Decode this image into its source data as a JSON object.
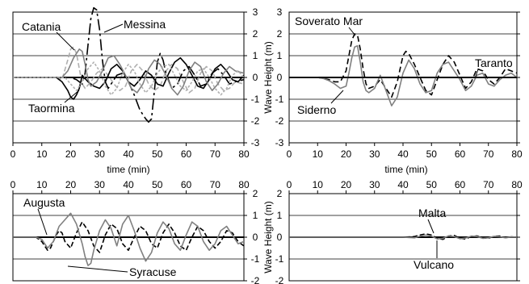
{
  "chart_data": [
    {
      "type": "line",
      "panel": "top-left",
      "xlim": [
        0,
        80
      ],
      "ylim": [
        -3,
        3
      ],
      "x_ticks": [
        "0",
        "10",
        "20",
        "30",
        "40",
        "50",
        "60",
        "70",
        "80"
      ],
      "y_ticks": [
        "3",
        "2",
        "1",
        "0",
        "-1",
        "-2",
        "-3"
      ],
      "xlabel": "time (min)",
      "ylabel": "",
      "grid": true,
      "series": [
        {
          "name": "Catania",
          "color": "#b0b0b0",
          "dash": "6,3",
          "x": [
            0,
            15,
            17,
            19,
            20,
            21,
            22,
            23,
            24,
            25,
            27,
            29,
            31,
            33,
            35,
            37,
            39,
            41,
            43,
            45,
            47,
            49,
            51,
            53,
            55,
            57,
            59,
            61,
            63,
            65,
            67,
            69,
            71,
            73,
            75,
            77,
            80
          ],
          "y": [
            0,
            0,
            -0.1,
            0.8,
            1.3,
            1.4,
            1.1,
            0.4,
            -0.3,
            -0.5,
            -0.2,
            0.2,
            0.4,
            0.1,
            -0.3,
            -0.6,
            -0.4,
            0.3,
            0.6,
            0.3,
            -0.3,
            -0.6,
            -0.4,
            0.3,
            0.6,
            0.4,
            -0.2,
            -0.7,
            -0.5,
            0.2,
            0.5,
            0.3,
            -0.3,
            -0.6,
            -0.5,
            -0.2,
            -0.3
          ]
        },
        {
          "name": "Messina",
          "color": "#000000",
          "dash": "14,4,3,4",
          "x": [
            0,
            20,
            22,
            24,
            25,
            26,
            27,
            28,
            29,
            30,
            31,
            32,
            33,
            34,
            36,
            38,
            40,
            42,
            44,
            46,
            47,
            48,
            49,
            50,
            51,
            52,
            53,
            55,
            57,
            59,
            61,
            63,
            65,
            67,
            69,
            71,
            73,
            75,
            77,
            80
          ],
          "y": [
            0,
            0,
            -0.1,
            -0.3,
            0.2,
            1.5,
            2.7,
            3.2,
            3.1,
            2.2,
            0.8,
            -0.2,
            -0.5,
            -0.3,
            0.1,
            0.2,
            -0.2,
            -0.8,
            -1.5,
            -1.9,
            -2.05,
            -1.9,
            -0.6,
            0.7,
            1.1,
            0.8,
            0.2,
            -0.5,
            -0.3,
            0.3,
            0.5,
            0.1,
            -0.4,
            -0.3,
            0.2,
            0.4,
            0.1,
            -0.3,
            -0.2,
            -0.1
          ]
        },
        {
          "name": "Taormina",
          "color": "#000000",
          "dash": "none",
          "x": [
            0,
            15,
            17,
            19,
            20,
            21,
            22,
            23,
            24,
            26,
            28,
            30,
            32,
            34,
            36,
            38,
            40,
            42,
            44,
            46,
            48,
            50,
            52,
            54,
            56,
            58,
            60,
            62,
            64,
            66,
            68,
            70,
            72,
            74,
            76,
            78,
            80
          ],
          "y": [
            0,
            0,
            -0.2,
            -0.6,
            -0.9,
            -1.0,
            -0.8,
            -0.5,
            0.1,
            -0.2,
            -0.4,
            -0.5,
            -0.2,
            0.4,
            0.6,
            0.3,
            -0.2,
            -0.4,
            -0.1,
            0.3,
            0.1,
            -0.3,
            -0.4,
            0.2,
            0.7,
            0.9,
            0.6,
            0.1,
            -0.4,
            -0.5,
            -0.1,
            0.4,
            0.6,
            0.3,
            -0.1,
            -0.2,
            0.1
          ]
        },
        {
          "name": "",
          "color": "#808080",
          "dash": "none",
          "x": [
            0,
            17,
            19,
            21,
            23,
            24,
            25,
            26,
            27,
            29,
            31,
            33,
            35,
            37,
            39,
            41,
            43,
            45,
            47,
            49,
            51,
            53,
            55,
            57,
            59,
            61,
            63,
            65,
            67,
            69,
            71,
            73,
            75,
            77,
            80
          ],
          "y": [
            0,
            0,
            0.3,
            0.9,
            1.3,
            1.2,
            0.6,
            -0.1,
            -0.4,
            -0.2,
            0.3,
            0.9,
            1.0,
            0.6,
            0.1,
            -0.5,
            -0.7,
            -0.3,
            0.4,
            0.8,
            0.6,
            0.1,
            -0.5,
            -0.8,
            -0.4,
            0.3,
            0.7,
            0.5,
            -0.2,
            -0.6,
            -0.3,
            0.2,
            0.5,
            0.3,
            0.2
          ]
        },
        {
          "name": "",
          "color": "#b0b0b0",
          "dash": "3,2",
          "x": [
            0,
            18,
            20,
            22,
            24,
            26,
            28,
            30,
            32,
            34,
            36,
            38,
            40,
            42,
            44,
            46,
            48,
            50,
            52,
            54,
            56,
            58,
            60,
            62,
            64,
            66,
            68,
            70,
            72,
            74,
            76,
            78,
            80
          ],
          "y": [
            0,
            0,
            -0.3,
            -0.6,
            -0.2,
            0.4,
            0.7,
            0.3,
            -0.4,
            -0.8,
            -0.5,
            0.2,
            0.6,
            0.3,
            -0.3,
            -0.7,
            -0.4,
            0.2,
            0.5,
            0.6,
            0.1,
            -0.4,
            -0.6,
            -0.2,
            0.3,
            0.4,
            0.0,
            -0.5,
            -0.8,
            -0.5,
            0.1,
            0.3,
            0.0
          ]
        }
      ],
      "annotations": [
        "Catania",
        "Messina",
        "Taormina"
      ]
    },
    {
      "type": "line",
      "panel": "top-right",
      "xlim": [
        0,
        80
      ],
      "ylim": [
        -3,
        3
      ],
      "x_ticks": [
        "0",
        "10",
        "20",
        "30",
        "40",
        "50",
        "60",
        "70",
        "80"
      ],
      "y_ticks": [
        "3",
        "2",
        "1",
        "0",
        "-1",
        "-2",
        "-3"
      ],
      "xlabel": "time (min)",
      "ylabel": "Wave Height (m)",
      "grid": true,
      "series": [
        {
          "name": "Soverato Mar",
          "color": "#000000",
          "dash": "7,4",
          "x": [
            0,
            10,
            12,
            14,
            16,
            18,
            20,
            21,
            22,
            23,
            24,
            25,
            26,
            27,
            28,
            30,
            32,
            34,
            36,
            38,
            40,
            41,
            42,
            44,
            46,
            48,
            50,
            52,
            54,
            56,
            58,
            60,
            62,
            64,
            66,
            68,
            70,
            72,
            74,
            76,
            78,
            80
          ],
          "y": [
            0,
            0,
            -0.05,
            -0.1,
            -0.2,
            -0.2,
            0.3,
            1.0,
            1.7,
            2.0,
            1.95,
            1.3,
            0.4,
            -0.3,
            -0.5,
            -0.4,
            -0.1,
            -0.5,
            -0.9,
            -0.2,
            1.0,
            1.2,
            1.1,
            0.6,
            0.0,
            -0.6,
            -0.8,
            -0.1,
            0.6,
            1.0,
            0.7,
            0.1,
            -0.5,
            -0.2,
            0.4,
            0.3,
            -0.1,
            -0.3,
            0.0,
            0.4,
            0.3,
            0.2
          ]
        },
        {
          "name": "Siderno",
          "color": "#808080",
          "dash": "none",
          "x": [
            0,
            10,
            12,
            14,
            16,
            18,
            20,
            21,
            22,
            23,
            24,
            25,
            26,
            27,
            28,
            30,
            32,
            34,
            36,
            38,
            40,
            42,
            44,
            46,
            48,
            50,
            52,
            54,
            56,
            58,
            60,
            62,
            64,
            66,
            68,
            70,
            72,
            74,
            76,
            78,
            80
          ],
          "y": [
            0,
            0,
            -0.05,
            -0.15,
            -0.3,
            -0.5,
            -0.4,
            0.2,
            0.9,
            1.4,
            1.45,
            0.7,
            -0.2,
            -0.6,
            -0.7,
            -0.5,
            0.1,
            -0.6,
            -1.3,
            -0.9,
            0.2,
            0.8,
            0.4,
            -0.3,
            -0.7,
            -0.6,
            0.2,
            0.6,
            0.7,
            0.3,
            -0.1,
            -0.6,
            -0.4,
            0.1,
            0.2,
            -0.3,
            -0.4,
            -0.1,
            0.1,
            0.2,
            0.0
          ]
        },
        {
          "name": "Taranto",
          "color": "#000000",
          "dash": "none",
          "x": [
            0,
            80
          ],
          "y": [
            0,
            0
          ]
        }
      ],
      "annotations": [
        "Soverato Mar",
        "Taranto",
        "Siderno"
      ]
    },
    {
      "type": "line",
      "panel": "bottom-left",
      "xlim": [
        0,
        80
      ],
      "ylim": [
        -2,
        2
      ],
      "x_ticks": [
        "0",
        "10",
        "20",
        "30",
        "40",
        "50",
        "60",
        "70",
        "80"
      ],
      "y_ticks": [
        "2",
        "1",
        "0",
        "-1",
        "-2"
      ],
      "xlabel": "",
      "ylabel": "",
      "grid": true,
      "series": [
        {
          "name": "Augusta",
          "color": "#000000",
          "dash": "6,3",
          "x": [
            0,
            8,
            10,
            11,
            12,
            13,
            14,
            15,
            16,
            17,
            18,
            20,
            22,
            24,
            26,
            28,
            30,
            32,
            34,
            36,
            38,
            40,
            42,
            44,
            46,
            48,
            50,
            52,
            54,
            56,
            58,
            60,
            62,
            64,
            66,
            68,
            70,
            72,
            74,
            76,
            78,
            80
          ],
          "y": [
            0,
            0,
            -0.2,
            -0.4,
            -0.6,
            -0.5,
            -0.2,
            0.1,
            0.3,
            0.2,
            -0.2,
            -0.5,
            0.2,
            0.7,
            0.3,
            -0.4,
            -0.7,
            0.1,
            0.6,
            0.4,
            -0.3,
            -0.6,
            0.0,
            0.5,
            0.3,
            -0.3,
            -0.5,
            0.2,
            0.6,
            0.2,
            -0.4,
            -0.6,
            0.0,
            0.5,
            0.3,
            -0.2,
            -0.5,
            -0.2,
            0.3,
            0.2,
            -0.2,
            -0.4
          ]
        },
        {
          "name": "Syracuse",
          "color": "#808080",
          "dash": "none",
          "x": [
            0,
            8,
            10,
            12,
            14,
            16,
            18,
            20,
            22,
            24,
            25,
            26,
            27,
            28,
            30,
            32,
            34,
            36,
            38,
            40,
            42,
            44,
            46,
            48,
            50,
            52,
            54,
            56,
            58,
            60,
            62,
            64,
            66,
            68,
            70,
            72,
            74,
            76,
            78,
            80
          ],
          "y": [
            0,
            0,
            -0.1,
            -0.5,
            -0.2,
            0.5,
            0.8,
            1.1,
            0.6,
            -0.3,
            -0.9,
            -1.3,
            -1.2,
            -0.6,
            0.3,
            0.8,
            0.4,
            -0.4,
            0.6,
            1.0,
            0.3,
            -0.5,
            -1.1,
            -0.7,
            0.2,
            0.7,
            0.4,
            -0.3,
            -0.6,
            0.1,
            0.7,
            0.5,
            -0.2,
            -0.6,
            -0.3,
            0.3,
            0.5,
            0.1,
            -0.3,
            -0.2
          ]
        }
      ],
      "annotations": [
        "Augusta",
        "Syracuse"
      ]
    },
    {
      "type": "line",
      "panel": "bottom-right",
      "xlim": [
        0,
        80
      ],
      "ylim": [
        -2,
        2
      ],
      "x_ticks": [
        "0",
        "10",
        "20",
        "30",
        "40",
        "50",
        "60",
        "70",
        "80"
      ],
      "y_ticks": [
        "2",
        "1",
        "0",
        "-1",
        "-2"
      ],
      "xlabel": "",
      "ylabel": "Wave Height (m)",
      "grid": true,
      "series": [
        {
          "name": "Malta",
          "color": "#000000",
          "dash": "6,3",
          "x": [
            0,
            40,
            44,
            46,
            48,
            50,
            52,
            54,
            56,
            58,
            60,
            62,
            64,
            66,
            68,
            70,
            72,
            74,
            76,
            78,
            80
          ],
          "y": [
            0,
            0,
            0.03,
            0.1,
            0.15,
            0.1,
            -0.05,
            -0.1,
            0.05,
            0.08,
            -0.05,
            -0.08,
            0.03,
            0.06,
            -0.03,
            -0.05,
            0.04,
            0.05,
            -0.02,
            0.02,
            0.0
          ]
        },
        {
          "name": "Vulcano",
          "color": "#808080",
          "dash": "none",
          "x": [
            0,
            40,
            44,
            46,
            48,
            50,
            52,
            54,
            56,
            58,
            60,
            62,
            64,
            66,
            68,
            70,
            72,
            74,
            76,
            78,
            80
          ],
          "y": [
            0,
            0,
            -0.03,
            0.05,
            0.1,
            0.05,
            -0.08,
            -0.05,
            0.06,
            0.03,
            -0.07,
            -0.04,
            0.05,
            0.03,
            -0.05,
            -0.03,
            0.04,
            0.02,
            -0.03,
            0.01,
            0.0
          ]
        }
      ],
      "annotations": [
        "Malta",
        "Vulcano"
      ]
    }
  ]
}
